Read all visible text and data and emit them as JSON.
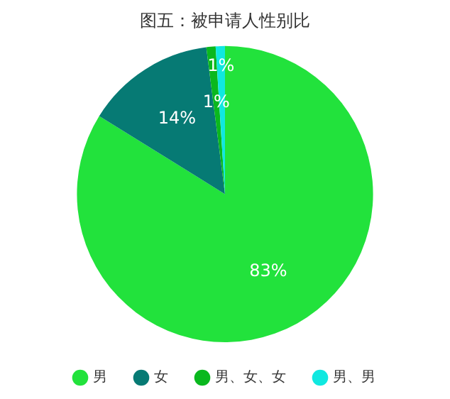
{
  "chart_data": {
    "type": "pie",
    "title": "图五：被申请人性别比",
    "categories": [
      "男",
      "女",
      "男、女、女",
      "男、男"
    ],
    "values": [
      83,
      14,
      1,
      1
    ],
    "colors": [
      "#22e23c",
      "#067a74",
      "#0ab81e",
      "#10e8e0"
    ],
    "value_labels": [
      "83%",
      "14%",
      "1%",
      "1%"
    ],
    "legend": "bottom"
  }
}
